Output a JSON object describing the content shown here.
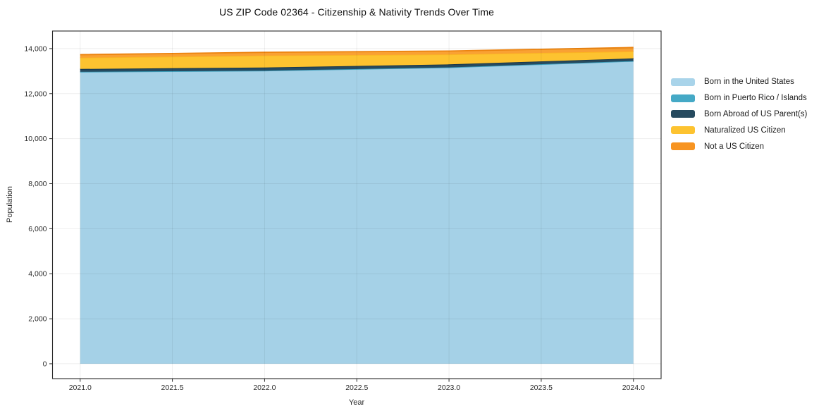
{
  "chart_data": {
    "type": "area",
    "stacked": true,
    "title": "US ZIP Code 02364 - Citizenship & Nativity Trends Over Time",
    "xlabel": "Year",
    "ylabel": "Population",
    "x": [
      2021,
      2022,
      2023,
      2024
    ],
    "series": [
      {
        "name": "Born in the United States",
        "values": [
          12960,
          13010,
          13155,
          13435
        ],
        "fill": "#A5D1E7",
        "line": "#97C8E0",
        "legend_color": "#A9D4EA"
      },
      {
        "name": "Born in Puerto Rico / Islands",
        "values": [
          10,
          10,
          10,
          10
        ],
        "fill": "#45A9C6",
        "line": "#3C9FBC",
        "legend_color": "#45A9C6"
      },
      {
        "name": "Born Abroad of US Parent(s)",
        "values": [
          125,
          140,
          135,
          120
        ],
        "fill": "#264A5F",
        "line": "#17354A",
        "legend_color": "#264A5F"
      },
      {
        "name": "Naturalized US Citizen",
        "values": [
          500,
          530,
          440,
          310
        ],
        "fill": "#FDC330",
        "line": "#FBB521",
        "legend_color": "#FDC330"
      },
      {
        "name": "Not a US Citizen",
        "values": [
          135,
          145,
          150,
          175
        ],
        "fill": "#F9A133",
        "line": "#EC830F",
        "legend_color": "#F79421"
      }
    ],
    "x_ticks": [
      2021.0,
      2021.5,
      2022.0,
      2022.5,
      2023.0,
      2023.5,
      2024.0
    ],
    "y_ticks": [
      0,
      2000,
      4000,
      6000,
      8000,
      10000,
      12000,
      14000
    ],
    "xlim": [
      2020.85,
      2024.15
    ],
    "ylim": [
      -660,
      14780
    ],
    "grid": true,
    "legend_position": "right-of-plot"
  }
}
